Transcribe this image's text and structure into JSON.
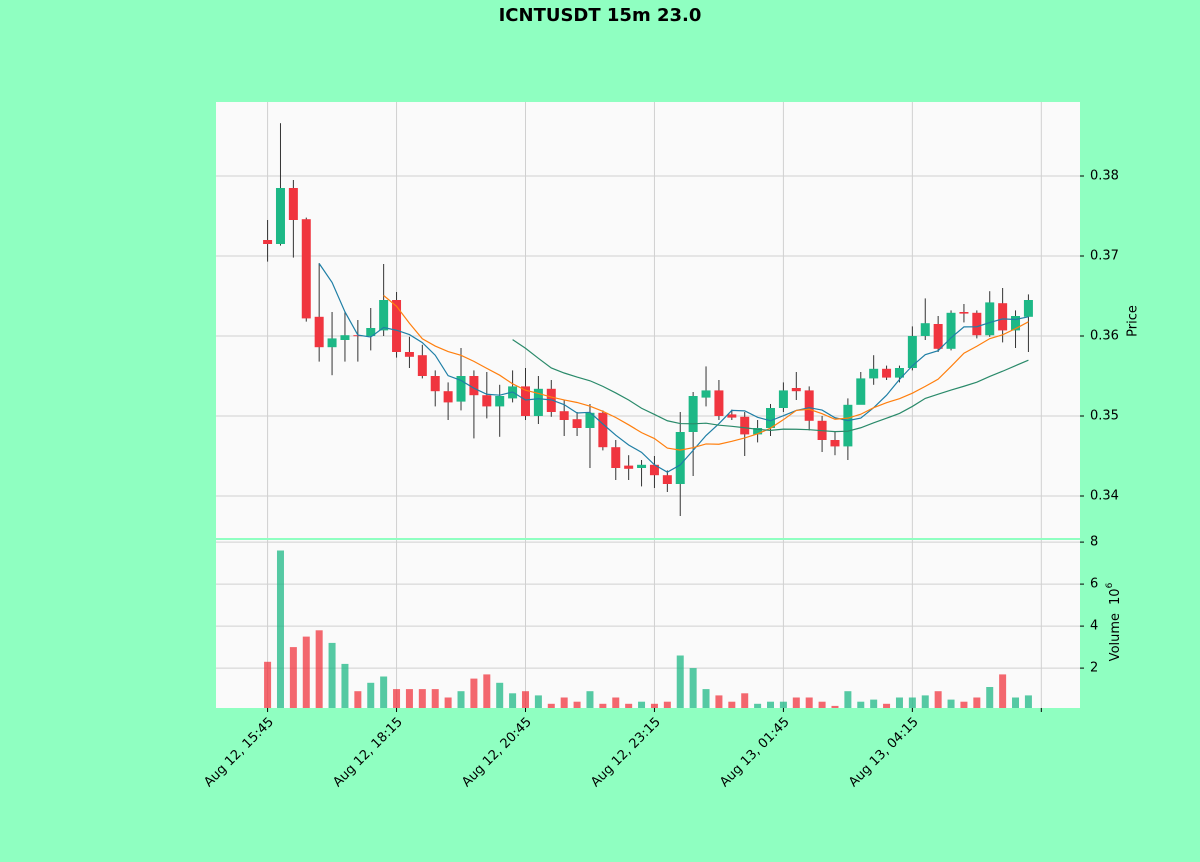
{
  "chart_data": {
    "type": "candlestick",
    "title": "ICNTUSDT 15m 23.0",
    "categories": [
      "Aug 12, 15:45",
      null,
      null,
      null,
      null,
      null,
      null,
      null,
      null,
      null,
      "Aug 12, 18:15",
      null,
      null,
      null,
      null,
      null,
      null,
      null,
      null,
      null,
      "Aug 12, 20:45",
      null,
      null,
      null,
      null,
      null,
      null,
      null,
      null,
      null,
      "Aug 12, 23:15",
      null,
      null,
      null,
      null,
      null,
      null,
      null,
      null,
      null,
      "Aug 13, 01:45",
      null,
      null,
      null,
      null,
      null,
      null,
      null,
      null,
      null,
      "Aug 13, 04:15",
      null,
      null,
      null,
      null,
      null,
      null,
      null,
      null,
      null
    ],
    "open": [
      0.372,
      0.3715,
      0.3785,
      0.3746,
      0.3624,
      0.3586,
      0.3595,
      0.3601,
      0.36,
      0.3607,
      0.3645,
      0.358,
      0.3576,
      0.355,
      0.3531,
      0.3518,
      0.355,
      0.3526,
      0.3512,
      0.3522,
      0.3537,
      0.35,
      0.3534,
      0.3506,
      0.3496,
      0.3485,
      0.3504,
      0.3461,
      0.3438,
      0.3435,
      0.3439,
      0.3426,
      0.3415,
      0.348,
      0.3523,
      0.3532,
      0.3502,
      0.3499,
      0.3477,
      0.3485,
      0.351,
      0.3535,
      0.3532,
      0.3494,
      0.347,
      0.3462,
      0.3514,
      0.3547,
      0.3559,
      0.3548,
      0.356,
      0.36,
      0.3615,
      0.3584,
      0.363,
      0.3629,
      0.3601,
      0.3641,
      0.3607,
      0.3624
    ],
    "high": [
      0.3745,
      0.3866,
      0.3795,
      0.3748,
      0.3691,
      0.363,
      0.363,
      0.362,
      0.3635,
      0.369,
      0.3655,
      0.3599,
      0.3589,
      0.3557,
      0.3542,
      0.3585,
      0.3557,
      0.3555,
      0.3539,
      0.3557,
      0.356,
      0.355,
      0.3545,
      0.352,
      0.3505,
      0.3515,
      0.3507,
      0.347,
      0.3451,
      0.3445,
      0.345,
      0.3432,
      0.3505,
      0.353,
      0.3562,
      0.3545,
      0.3508,
      0.3505,
      0.3495,
      0.3515,
      0.3542,
      0.3555,
      0.3537,
      0.35,
      0.348,
      0.3522,
      0.3555,
      0.3576,
      0.3563,
      0.3563,
      0.3612,
      0.3647,
      0.3625,
      0.3632,
      0.364,
      0.3632,
      0.3656,
      0.366,
      0.3632,
      0.3652
    ],
    "low": [
      0.3693,
      0.3713,
      0.3698,
      0.3618,
      0.3568,
      0.3551,
      0.3568,
      0.3568,
      0.3582,
      0.36,
      0.3573,
      0.356,
      0.3547,
      0.3512,
      0.3495,
      0.3507,
      0.3472,
      0.3497,
      0.3474,
      0.3517,
      0.3495,
      0.349,
      0.3499,
      0.3475,
      0.3475,
      0.3435,
      0.3457,
      0.342,
      0.342,
      0.3412,
      0.341,
      0.3405,
      0.3375,
      0.3425,
      0.3512,
      0.3495,
      0.3495,
      0.345,
      0.3467,
      0.3475,
      0.3505,
      0.352,
      0.3482,
      0.3455,
      0.3451,
      0.3445,
      0.3515,
      0.3539,
      0.3545,
      0.3542,
      0.3557,
      0.3595,
      0.358,
      0.3582,
      0.3617,
      0.3597,
      0.3599,
      0.3592,
      0.3585,
      0.358
    ],
    "close": [
      0.3715,
      0.3785,
      0.3745,
      0.3622,
      0.3586,
      0.3597,
      0.3601,
      0.36,
      0.361,
      0.3645,
      0.358,
      0.3574,
      0.355,
      0.3531,
      0.3517,
      0.355,
      0.3526,
      0.3512,
      0.3525,
      0.3537,
      0.35,
      0.3534,
      0.3505,
      0.3495,
      0.3485,
      0.3504,
      0.3461,
      0.3435,
      0.3434,
      0.3439,
      0.3426,
      0.3415,
      0.348,
      0.3525,
      0.3532,
      0.35,
      0.3498,
      0.3477,
      0.3485,
      0.351,
      0.3532,
      0.3531,
      0.3494,
      0.347,
      0.3462,
      0.3514,
      0.3547,
      0.3559,
      0.3548,
      0.356,
      0.36,
      0.3616,
      0.3584,
      0.3629,
      0.3628,
      0.3601,
      0.3642,
      0.3607,
      0.3625,
      0.3645
    ],
    "volume": [
      2.3,
      7.6,
      3.0,
      3.5,
      3.8,
      3.2,
      2.2,
      0.9,
      1.3,
      1.6,
      1.0,
      1.0,
      1.0,
      1.0,
      0.6,
      0.9,
      1.5,
      1.7,
      1.3,
      0.8,
      0.9,
      0.7,
      0.3,
      0.6,
      0.4,
      0.9,
      0.3,
      0.6,
      0.3,
      0.4,
      0.3,
      0.4,
      2.6,
      2.0,
      1.0,
      0.7,
      0.4,
      0.8,
      0.3,
      0.4,
      0.4,
      0.6,
      0.6,
      0.4,
      0.2,
      0.9,
      0.4,
      0.5,
      0.3,
      0.6,
      0.6,
      0.7,
      0.9,
      0.5,
      0.4,
      0.6,
      1.1,
      1.7,
      0.6,
      0.7
    ],
    "up_color": "#1db886",
    "down_color": "#f0353f",
    "moving_averages": [
      {
        "window": 5,
        "color": "#1f7fa6"
      },
      {
        "window": 10,
        "color": "#ff7f0e"
      },
      {
        "window": 20,
        "color": "#2a8a6a"
      }
    ],
    "xlim": [
      -4,
      63
    ],
    "xticks": [
      0,
      10,
      20,
      30,
      40,
      50,
      60
    ],
    "ylim": [
      0.33475,
      0.38925
    ],
    "yticks": [
      0.34,
      0.35,
      0.36,
      0.37,
      0.38
    ],
    "ylabel": "Price",
    "volume_ylim": [
      0.1,
      8.1
    ],
    "volume_yticks": [
      2,
      4,
      6,
      8
    ],
    "volume_label": "Volume",
    "volume_unit": "10",
    "volume_unit_exponent": "6",
    "grid": true
  }
}
